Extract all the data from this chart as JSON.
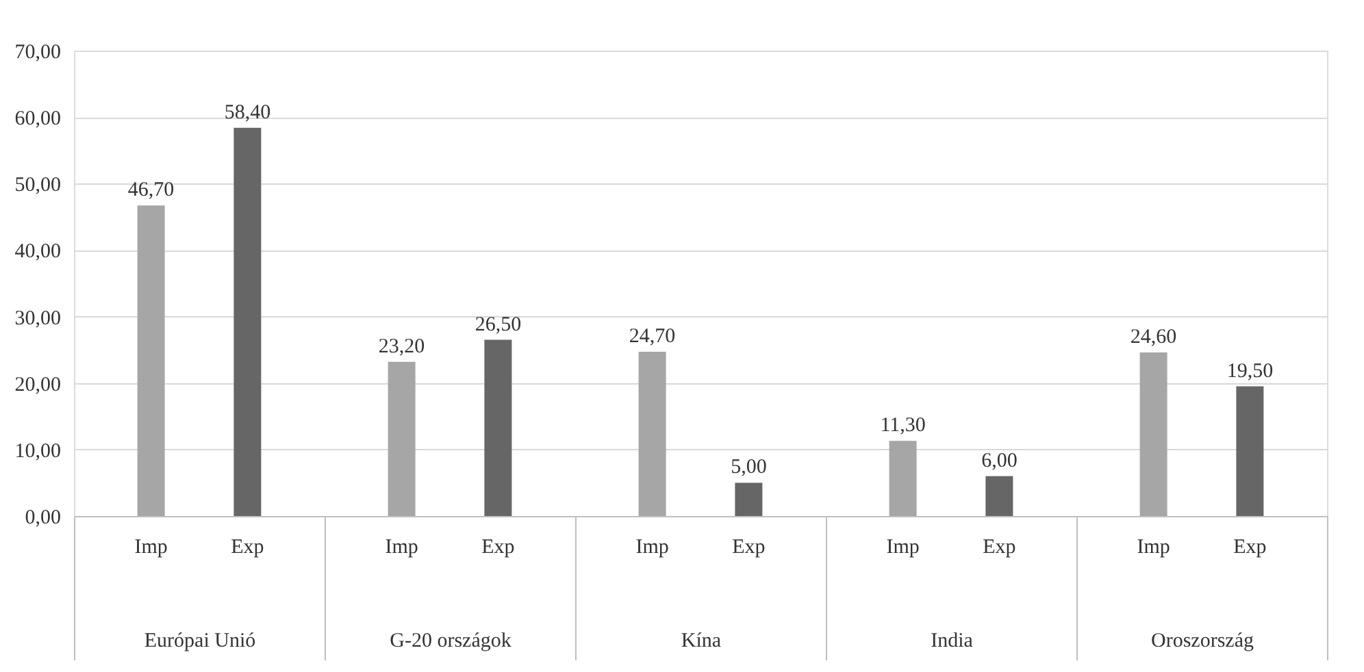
{
  "chart_data": {
    "type": "bar",
    "categories": [
      "Európai Unió",
      "G-20 országok",
      "Kína",
      "India",
      "Oroszország"
    ],
    "series": [
      {
        "name": "Imp",
        "color": "#a6a6a6",
        "values": [
          46.7,
          23.2,
          24.7,
          11.3,
          24.6
        ],
        "value_labels": [
          "46,70",
          "23,20",
          "24,70",
          "11,30",
          "24,60"
        ]
      },
      {
        "name": "Exp",
        "color": "#666666",
        "values": [
          58.4,
          26.5,
          5.0,
          6.0,
          19.5
        ],
        "value_labels": [
          "58,40",
          "26,50",
          "5,00",
          "6,00",
          "19,50"
        ]
      }
    ],
    "ylim": [
      0,
      70
    ],
    "yticks": [
      {
        "value": 0,
        "label": "0,00"
      },
      {
        "value": 10,
        "label": "10,00"
      },
      {
        "value": 20,
        "label": "20,00"
      },
      {
        "value": 30,
        "label": "30,00"
      },
      {
        "value": 40,
        "label": "40,00"
      },
      {
        "value": 50,
        "label": "50,00"
      },
      {
        "value": 60,
        "label": "60,00"
      },
      {
        "value": 70,
        "label": "70,00"
      }
    ],
    "grid": "y",
    "legend": false
  }
}
